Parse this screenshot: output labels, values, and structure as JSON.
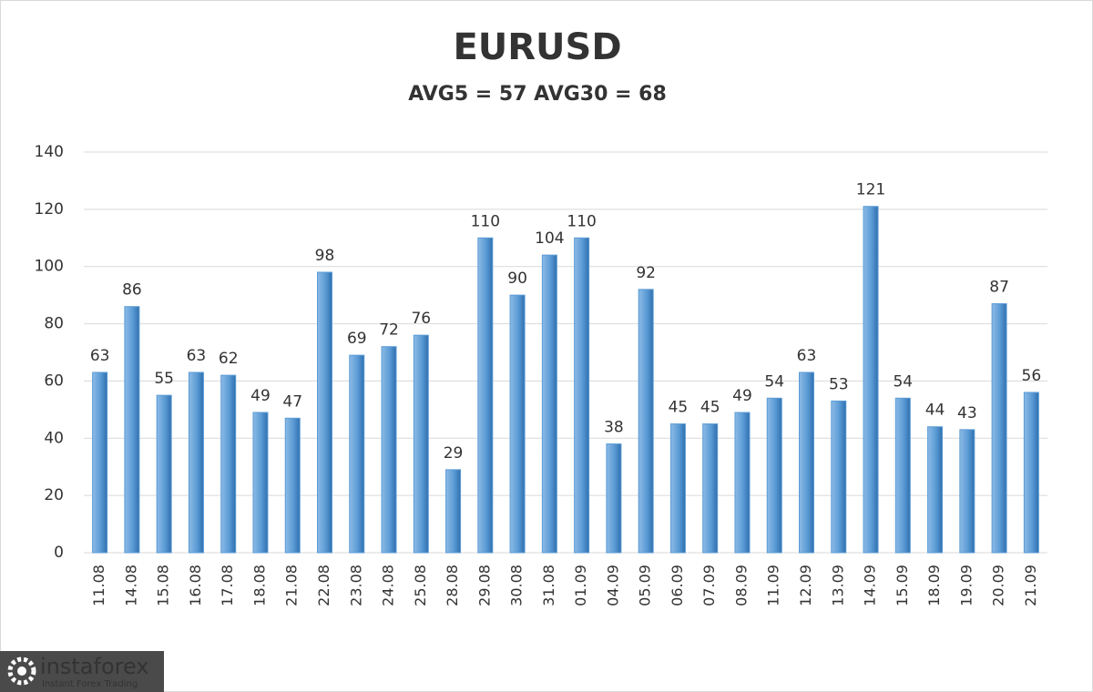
{
  "chart_data": {
    "type": "bar",
    "title": "EURUSD",
    "subtitle": "AVG5 = 57 AVG30 = 68",
    "categories": [
      "11.08",
      "14.08",
      "15.08",
      "16.08",
      "17.08",
      "18.08",
      "21.08",
      "22.08",
      "23.08",
      "24.08",
      "25.08",
      "28.08",
      "29.08",
      "30.08",
      "31.08",
      "01.09",
      "04.09",
      "05.09",
      "06.09",
      "07.09",
      "08.09",
      "11.09",
      "12.09",
      "13.09",
      "14.09",
      "15.09",
      "18.09",
      "19.09",
      "20.09",
      "21.09"
    ],
    "values": [
      63,
      86,
      55,
      63,
      62,
      49,
      47,
      98,
      69,
      72,
      76,
      29,
      110,
      90,
      104,
      110,
      38,
      92,
      45,
      45,
      49,
      54,
      63,
      53,
      121,
      54,
      44,
      43,
      87,
      56
    ],
    "color": "#5b9bd5",
    "ylim": [
      0,
      140
    ],
    "yticks": [
      0,
      20,
      40,
      60,
      80,
      100,
      120,
      140
    ],
    "grid": true
  },
  "logo": {
    "name": "instaforex",
    "tagline": "Instant Forex Trading"
  }
}
